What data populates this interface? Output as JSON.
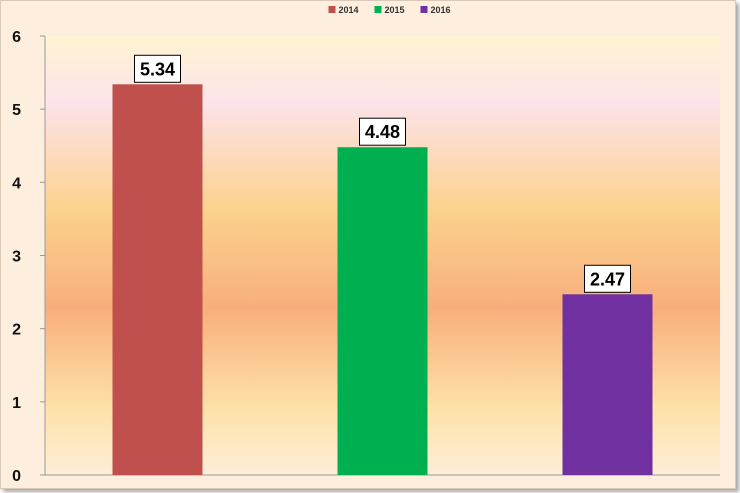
{
  "chart_data": {
    "type": "bar",
    "title": "",
    "xlabel": "",
    "ylabel": "",
    "ylim": [
      0,
      6
    ],
    "yticks": [
      0,
      1,
      2,
      3,
      4,
      5,
      6
    ],
    "grid": false,
    "legend_position": "top",
    "series": [
      {
        "name": "2014",
        "value": 5.34,
        "label": "5.34",
        "color": "#c0504d"
      },
      {
        "name": "2015",
        "value": 4.48,
        "label": "4.48",
        "color": "#00b050"
      },
      {
        "name": "2016",
        "value": 2.47,
        "label": "2.47",
        "color": "#7030a0"
      }
    ]
  },
  "colors": {
    "frame_background": "#fdeede",
    "plot_gradient": [
      "#fff6d6",
      "#fde4ea",
      "#fbd08a",
      "#f9b07a",
      "#fde0a6",
      "#fdeede"
    ]
  }
}
